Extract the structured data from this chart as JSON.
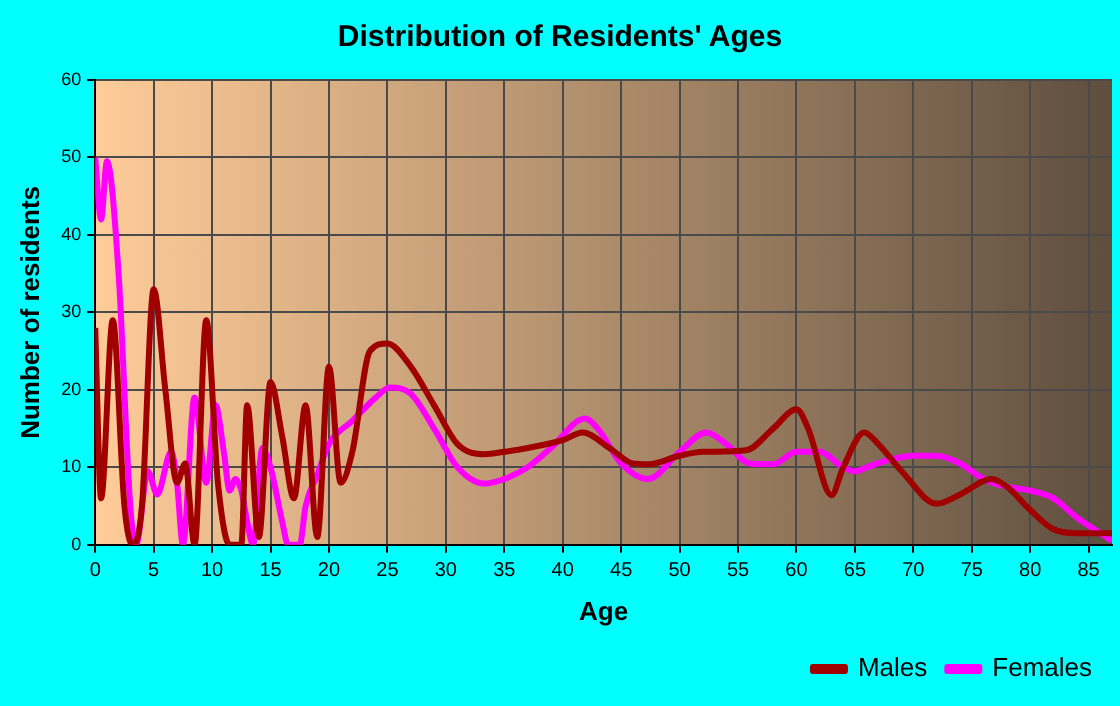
{
  "chart_data": {
    "type": "line",
    "title": "Distribution of Residents' Ages",
    "xlabel": "Age",
    "ylabel": "Number of residents",
    "xlim": [
      0,
      87
    ],
    "xticks": [
      0,
      5,
      10,
      15,
      20,
      25,
      30,
      35,
      40,
      45,
      50,
      55,
      60,
      65,
      70,
      75,
      80,
      85
    ],
    "ylim": [
      0,
      60
    ],
    "yticks": [
      0,
      10,
      20,
      30,
      40,
      50,
      60
    ],
    "grid": true,
    "legend": "bottom right",
    "marker": "none",
    "line_style": "solid",
    "series": [
      {
        "name": "Males",
        "color": "#a00000",
        "x": [
          0,
          0.5,
          1.5,
          2.5,
          3.2,
          4,
          5,
          6,
          7,
          7.7,
          8.5,
          9.5,
          10.5,
          11.5,
          12.5,
          13,
          14,
          15,
          16,
          17,
          18,
          19,
          20,
          21,
          22,
          23.5,
          25,
          27,
          29,
          31,
          33.3,
          35,
          37,
          40,
          41.7,
          44,
          46,
          47.3,
          50,
          52,
          55.7,
          58,
          60,
          61,
          63,
          64,
          65.8,
          67,
          69,
          72,
          74,
          76.7,
          78,
          80,
          82,
          84,
          87
        ],
        "values": [
          28,
          6,
          29,
          5,
          0,
          5,
          33,
          20,
          8,
          10.5,
          0,
          29,
          8,
          0,
          0,
          18,
          1,
          21,
          14,
          6,
          18,
          1,
          23,
          8,
          12,
          25,
          26,
          23,
          18,
          13,
          11.7,
          12,
          12.5,
          13.5,
          14.5,
          12.5,
          10.5,
          10.4,
          11.5,
          12,
          12.2,
          15,
          17.5,
          15,
          6.4,
          10,
          14.5,
          13,
          9.5,
          5.3,
          6.5,
          8.5,
          7.5,
          4.5,
          2,
          1.5,
          1.5
        ]
      },
      {
        "name": "Females",
        "color": "#ff00ff",
        "x": [
          0,
          0.5,
          1,
          2,
          3,
          3.5,
          4.5,
          5.3,
          6.5,
          7,
          7.5,
          8.5,
          9.5,
          10.3,
          11,
          11.5,
          12,
          12.5,
          13,
          13.5,
          14.3,
          15,
          16,
          16.5,
          17.5,
          18,
          19,
          20,
          22,
          24,
          25.2,
          27,
          29,
          31,
          33.3,
          35,
          37,
          39,
          41.9,
          43,
          45,
          47.3,
          50,
          52.3,
          54,
          56,
          58,
          60,
          62,
          64,
          65,
          66,
          68,
          70,
          72,
          74,
          76,
          78,
          80,
          82,
          84,
          86,
          87
        ],
        "values": [
          50,
          42,
          49.5,
          35,
          5,
          0,
          9.5,
          6.5,
          12,
          8,
          0,
          19,
          8,
          18,
          12,
          7,
          8.5,
          7,
          3,
          0,
          12.5,
          10,
          3,
          0,
          0,
          5,
          9,
          13,
          16,
          19,
          20.3,
          19.5,
          15,
          10,
          7.9,
          8.5,
          10,
          12.5,
          16.3,
          15,
          10.5,
          8.5,
          12,
          14.5,
          13,
          10.5,
          10.4,
          12,
          12,
          10,
          9.5,
          10,
          11,
          11.5,
          11.5,
          10.5,
          8.5,
          7.5,
          7,
          6,
          3.5,
          1.5,
          0.5
        ]
      }
    ]
  }
}
